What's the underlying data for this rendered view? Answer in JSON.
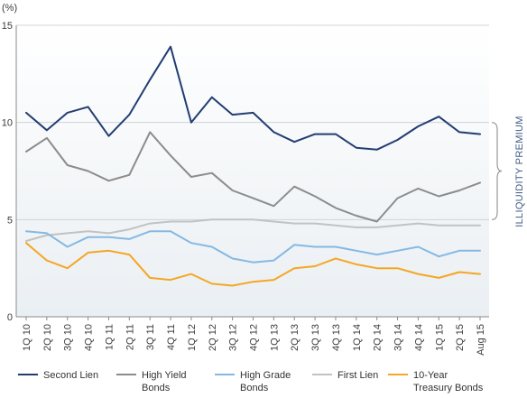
{
  "chart_data": {
    "type": "line",
    "unit_label": "(%)",
    "categories": [
      "1Q 10",
      "2Q 10",
      "3Q 10",
      "4Q 10",
      "1Q 11",
      "2Q 11",
      "3Q 11",
      "4Q 11",
      "1Q 12",
      "2Q 12",
      "3Q 12",
      "4Q 12",
      "1Q 13",
      "2Q 13",
      "3Q 13",
      "4Q 13",
      "1Q 14",
      "2Q 14",
      "3Q 14",
      "4Q 14",
      "1Q 15",
      "2Q 15",
      "Aug 15"
    ],
    "ylim": [
      0,
      15
    ],
    "yticks": [
      0,
      5,
      10,
      15
    ],
    "grid": true,
    "legend_position": "bottom",
    "series": [
      {
        "name": "Second Lien",
        "color": "#223d72",
        "values": [
          10.5,
          9.6,
          10.5,
          10.8,
          9.3,
          10.4,
          12.2,
          13.9,
          10.0,
          11.3,
          10.4,
          10.5,
          9.5,
          9.0,
          9.4,
          9.4,
          8.7,
          8.6,
          9.1,
          9.8,
          10.3,
          9.5,
          9.4
        ]
      },
      {
        "name": "High Yield Bonds",
        "color": "#8c8c8c",
        "values": [
          8.5,
          9.2,
          7.8,
          7.5,
          7.0,
          7.3,
          9.5,
          8.3,
          7.2,
          7.4,
          6.5,
          6.1,
          5.7,
          6.7,
          6.2,
          5.6,
          5.2,
          4.9,
          6.1,
          6.6,
          6.2,
          6.5,
          6.9
        ]
      },
      {
        "name": "High Grade Bonds",
        "color": "#85b9e3",
        "values": [
          4.4,
          4.3,
          3.6,
          4.1,
          4.1,
          4.0,
          4.4,
          4.4,
          3.8,
          3.6,
          3.0,
          2.8,
          2.9,
          3.7,
          3.6,
          3.6,
          3.4,
          3.2,
          3.4,
          3.6,
          3.1,
          3.4,
          3.4
        ]
      },
      {
        "name": "First Lien",
        "color": "#c2c2c2",
        "values": [
          3.9,
          4.2,
          4.3,
          4.4,
          4.3,
          4.5,
          4.8,
          4.9,
          4.9,
          5.0,
          5.0,
          5.0,
          4.9,
          4.8,
          4.8,
          4.7,
          4.6,
          4.6,
          4.7,
          4.8,
          4.7,
          4.7,
          4.7
        ]
      },
      {
        "name": "10-Year Treasury Bonds",
        "color": "#f5a623",
        "values": [
          3.8,
          2.9,
          2.5,
          3.3,
          3.4,
          3.2,
          2.0,
          1.9,
          2.2,
          1.7,
          1.6,
          1.8,
          1.9,
          2.5,
          2.6,
          3.0,
          2.7,
          2.5,
          2.5,
          2.2,
          2.0,
          2.3,
          2.2
        ]
      }
    ],
    "legend_labels": [
      {
        "line1": "Second Lien",
        "line2": ""
      },
      {
        "line1": "High Yield",
        "line2": "Bonds"
      },
      {
        "line1": "High Grade",
        "line2": "Bonds"
      },
      {
        "line1": "First Lien",
        "line2": ""
      },
      {
        "line1": "10-Year",
        "line2": "Treasury Bonds"
      }
    ],
    "annotation": "ILLIQUIDITY PREMIUM"
  }
}
